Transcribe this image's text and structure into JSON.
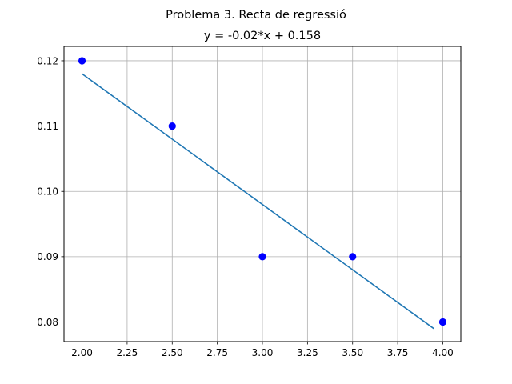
{
  "chart_data": {
    "type": "scatter",
    "suptitle": "Problema 3. Recta de regressió",
    "title": "y = -0.02*x + 0.158",
    "xlabel": "",
    "ylabel": "",
    "xlim": [
      1.9,
      4.1
    ],
    "ylim": [
      0.077,
      0.1222
    ],
    "grid": true,
    "x_ticks": [
      "2.00",
      "2.25",
      "2.50",
      "2.75",
      "3.00",
      "3.25",
      "3.50",
      "3.75",
      "4.00"
    ],
    "y_ticks": [
      "0.08",
      "0.09",
      "0.10",
      "0.11",
      "0.12"
    ],
    "series": [
      {
        "kind": "points",
        "color": "#0000ff",
        "x": [
          2.0,
          2.5,
          3.0,
          3.5,
          4.0
        ],
        "y": [
          0.12,
          0.11,
          0.09,
          0.09,
          0.08
        ]
      },
      {
        "kind": "line",
        "color": "#1f77b4",
        "x": [
          2.0,
          3.95
        ],
        "y": [
          0.118,
          0.079
        ]
      }
    ]
  }
}
